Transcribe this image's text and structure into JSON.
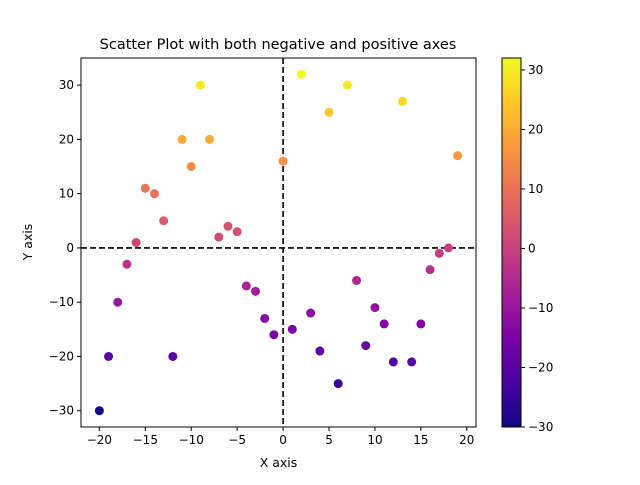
{
  "chart_data": {
    "type": "scatter",
    "title": "Scatter Plot with both negative and positive axes",
    "xlabel": "X axis",
    "ylabel": "Y axis",
    "xlim": [
      -22,
      21
    ],
    "ylim": [
      -33,
      35
    ],
    "xticks": [
      -20,
      -15,
      -10,
      -5,
      0,
      5,
      10,
      15,
      20
    ],
    "yticks": [
      -30,
      -20,
      -10,
      0,
      10,
      20,
      30
    ],
    "reference_lines": {
      "x": 0,
      "y": 0,
      "style": "dashed",
      "color": "#000000"
    },
    "colormap": "plasma",
    "colorbar": {
      "min": -30,
      "max": 32,
      "ticks": [
        -30,
        -20,
        -10,
        0,
        10,
        20,
        30
      ]
    },
    "grid": false,
    "points": [
      {
        "x": -20,
        "y": -30
      },
      {
        "x": -19,
        "y": -20
      },
      {
        "x": -18,
        "y": -10
      },
      {
        "x": -17,
        "y": -3
      },
      {
        "x": -16,
        "y": 1
      },
      {
        "x": -15,
        "y": 11
      },
      {
        "x": -14,
        "y": 10
      },
      {
        "x": -13,
        "y": 5
      },
      {
        "x": -12,
        "y": -20
      },
      {
        "x": -11,
        "y": 20
      },
      {
        "x": -10,
        "y": 15
      },
      {
        "x": -9,
        "y": 30
      },
      {
        "x": -8,
        "y": 20
      },
      {
        "x": -7,
        "y": 2
      },
      {
        "x": -6,
        "y": 4
      },
      {
        "x": -5,
        "y": 3
      },
      {
        "x": -4,
        "y": -7
      },
      {
        "x": -3,
        "y": -8
      },
      {
        "x": -2,
        "y": -13
      },
      {
        "x": -1,
        "y": -16
      },
      {
        "x": 0,
        "y": 16
      },
      {
        "x": 1,
        "y": -15
      },
      {
        "x": 2,
        "y": 32
      },
      {
        "x": 3,
        "y": -12
      },
      {
        "x": 4,
        "y": -19
      },
      {
        "x": 5,
        "y": 25
      },
      {
        "x": 6,
        "y": -25
      },
      {
        "x": 7,
        "y": 30
      },
      {
        "x": 8,
        "y": -6
      },
      {
        "x": 9,
        "y": -18
      },
      {
        "x": 10,
        "y": -11
      },
      {
        "x": 11,
        "y": -14
      },
      {
        "x": 12,
        "y": -21
      },
      {
        "x": 13,
        "y": 27
      },
      {
        "x": 14,
        "y": -21
      },
      {
        "x": 15,
        "y": -14
      },
      {
        "x": 16,
        "y": -4
      },
      {
        "x": 17,
        "y": -1
      },
      {
        "x": 18,
        "y": 0
      },
      {
        "x": 19,
        "y": 17
      }
    ]
  }
}
